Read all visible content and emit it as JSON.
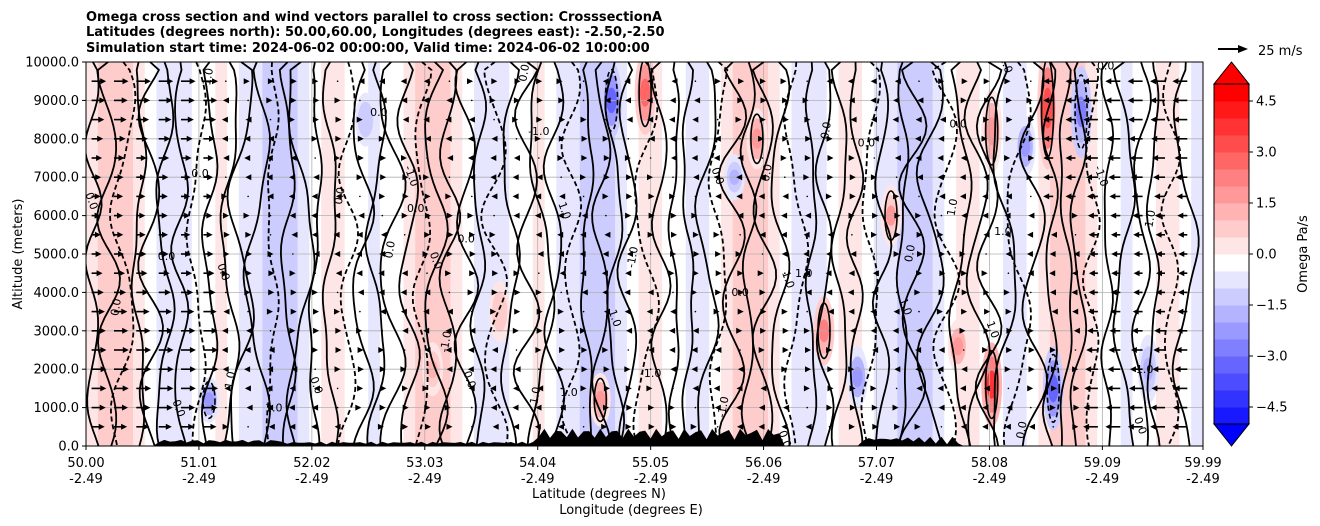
{
  "chart_data": {
    "type": "heatmap",
    "title_lines": [
      "Omega cross section and wind vectors parallel to cross section: CrosssectionA",
      "Latitudes (degrees north): 50.00,60.00, Longitudes (degrees east): -2.50,-2.50",
      "Simulation start time: 2024-06-02 00:00:00, Valid time: 2024-06-02 10:00:00"
    ],
    "xlabel": "Latitude (degrees N)",
    "xlabel2": "Longitude (degrees E)",
    "ylabel": "Altitude (meters)",
    "ylim": [
      0,
      10000
    ],
    "xlim": [
      50.0,
      59.99
    ],
    "x_ticks": [
      {
        "lat": "50.00",
        "lon": "-2.49",
        "v": 50.0
      },
      {
        "lat": "51.01",
        "lon": "-2.49",
        "v": 51.01
      },
      {
        "lat": "52.02",
        "lon": "-2.49",
        "v": 52.02
      },
      {
        "lat": "53.03",
        "lon": "-2.49",
        "v": 53.03
      },
      {
        "lat": "54.04",
        "lon": "-2.49",
        "v": 54.04
      },
      {
        "lat": "55.05",
        "lon": "-2.49",
        "v": 55.05
      },
      {
        "lat": "56.06",
        "lon": "-2.49",
        "v": 56.06
      },
      {
        "lat": "57.07",
        "lon": "-2.49",
        "v": 57.07
      },
      {
        "lat": "58.08",
        "lon": "-2.49",
        "v": 58.08
      },
      {
        "lat": "59.09",
        "lon": "-2.49",
        "v": 59.09
      },
      {
        "lat": "59.99",
        "lon": "-2.49",
        "v": 59.99
      }
    ],
    "y_ticks": [
      {
        "label": "0.0",
        "v": 0
      },
      {
        "label": "1000.0",
        "v": 1000
      },
      {
        "label": "2000.0",
        "v": 2000
      },
      {
        "label": "3000.0",
        "v": 3000
      },
      {
        "label": "4000.0",
        "v": 4000
      },
      {
        "label": "5000.0",
        "v": 5000
      },
      {
        "label": "6000.0",
        "v": 6000
      },
      {
        "label": "7000.0",
        "v": 7000
      },
      {
        "label": "8000.0",
        "v": 8000
      },
      {
        "label": "9000.0",
        "v": 9000
      },
      {
        "label": "10000.0",
        "v": 10000
      }
    ],
    "colorbar": {
      "label": "Omega Pa/s",
      "range": [
        -5.0,
        5.0
      ],
      "ticks": [
        "4.5",
        "3.0",
        "1.5",
        "0.0",
        "−1.5",
        "−3.0",
        "−4.5"
      ],
      "tick_values": [
        4.5,
        3.0,
        1.5,
        0.0,
        -1.5,
        -3.0,
        -4.5
      ],
      "extend": "both",
      "cmap": "bwr"
    },
    "quiver_key": {
      "label": "25 m/s",
      "speed": 25
    },
    "grid": true,
    "contour_levels": [
      -1.0,
      0.0,
      1.0
    ],
    "contour_labels": [
      {
        "text": "0.0",
        "lat": 50.02,
        "alt": 6350
      },
      {
        "text": "0.0",
        "lat": 50.3,
        "alt": 3600
      },
      {
        "text": "0.0",
        "lat": 50.72,
        "alt": 4850
      },
      {
        "text": "0.0",
        "lat": 50.8,
        "alt": 950
      },
      {
        "text": "-1.0",
        "lat": 51.12,
        "alt": 9550
      },
      {
        "text": "0.0",
        "lat": 51.02,
        "alt": 7000
      },
      {
        "text": "0.0",
        "lat": 51.2,
        "alt": 4500
      },
      {
        "text": "1.0",
        "lat": 51.32,
        "alt": 1700
      },
      {
        "text": "1.0",
        "lat": 51.68,
        "alt": 900
      },
      {
        "text": "0.0",
        "lat": 52.03,
        "alt": 1550
      },
      {
        "text": "0.0",
        "lat": 52.3,
        "alt": 6500
      },
      {
        "text": "0.0",
        "lat": 52.62,
        "alt": 8600
      },
      {
        "text": "-1.0",
        "lat": 52.88,
        "alt": 7000
      },
      {
        "text": "0.0",
        "lat": 52.75,
        "alt": 5100
      },
      {
        "text": "0.0",
        "lat": 52.95,
        "alt": 6100
      },
      {
        "text": "0.0",
        "lat": 53.1,
        "alt": 4800
      },
      {
        "text": "-1.0",
        "lat": 53.25,
        "alt": 2700
      },
      {
        "text": "0.0",
        "lat": 53.4,
        "alt": 5300
      },
      {
        "text": "0.0",
        "lat": 53.4,
        "alt": 1700
      },
      {
        "text": "0.0",
        "lat": 53.95,
        "alt": 9700
      },
      {
        "text": "-1.0",
        "lat": 54.05,
        "alt": 8100
      },
      {
        "text": "1.0",
        "lat": 54.25,
        "alt": 6100
      },
      {
        "text": "1.0",
        "lat": 54.05,
        "alt": 1300
      },
      {
        "text": "1.0",
        "lat": 54.32,
        "alt": 1300
      },
      {
        "text": "1.0",
        "lat": 54.7,
        "alt": 3300
      },
      {
        "text": "-1.0",
        "lat": 54.92,
        "alt": 4900
      },
      {
        "text": "-1.0",
        "lat": 55.05,
        "alt": 1800
      },
      {
        "text": "0.0",
        "lat": 55.62,
        "alt": 7000
      },
      {
        "text": "0.0",
        "lat": 56.12,
        "alt": 7100
      },
      {
        "text": "0.0",
        "lat": 55.85,
        "alt": 3900
      },
      {
        "text": "1.0",
        "lat": 56.25,
        "alt": 4300
      },
      {
        "text": "-1.0",
        "lat": 55.73,
        "alt": 1000
      },
      {
        "text": "1.0",
        "lat": 56.42,
        "alt": 4400
      },
      {
        "text": "0.0",
        "lat": 56.22,
        "alt": 150
      },
      {
        "text": "0.0",
        "lat": 56.65,
        "alt": 8200
      },
      {
        "text": "0.0",
        "lat": 56.98,
        "alt": 7800
      },
      {
        "text": "1.0",
        "lat": 57.3,
        "alt": 3600
      },
      {
        "text": "0.0",
        "lat": 57.4,
        "alt": 5000
      },
      {
        "text": "0.0",
        "lat": 57.8,
        "alt": 8300
      },
      {
        "text": "1.0",
        "lat": 58.2,
        "alt": 9900
      },
      {
        "text": "1.0",
        "lat": 57.78,
        "alt": 6200
      },
      {
        "text": "1.0",
        "lat": 58.2,
        "alt": 5500
      },
      {
        "text": "1.0",
        "lat": 58.08,
        "alt": 3000
      },
      {
        "text": "0.0",
        "lat": 58.4,
        "alt": 400
      },
      {
        "text": "0.0",
        "lat": 59.12,
        "alt": 9800
      },
      {
        "text": "-1.0",
        "lat": 59.05,
        "alt": 7000
      },
      {
        "text": "1.0",
        "lat": 59.55,
        "alt": 5900
      },
      {
        "text": "-1.0",
        "lat": 59.45,
        "alt": 1900
      },
      {
        "text": "0.0",
        "lat": 59.4,
        "alt": 500
      }
    ]
  }
}
